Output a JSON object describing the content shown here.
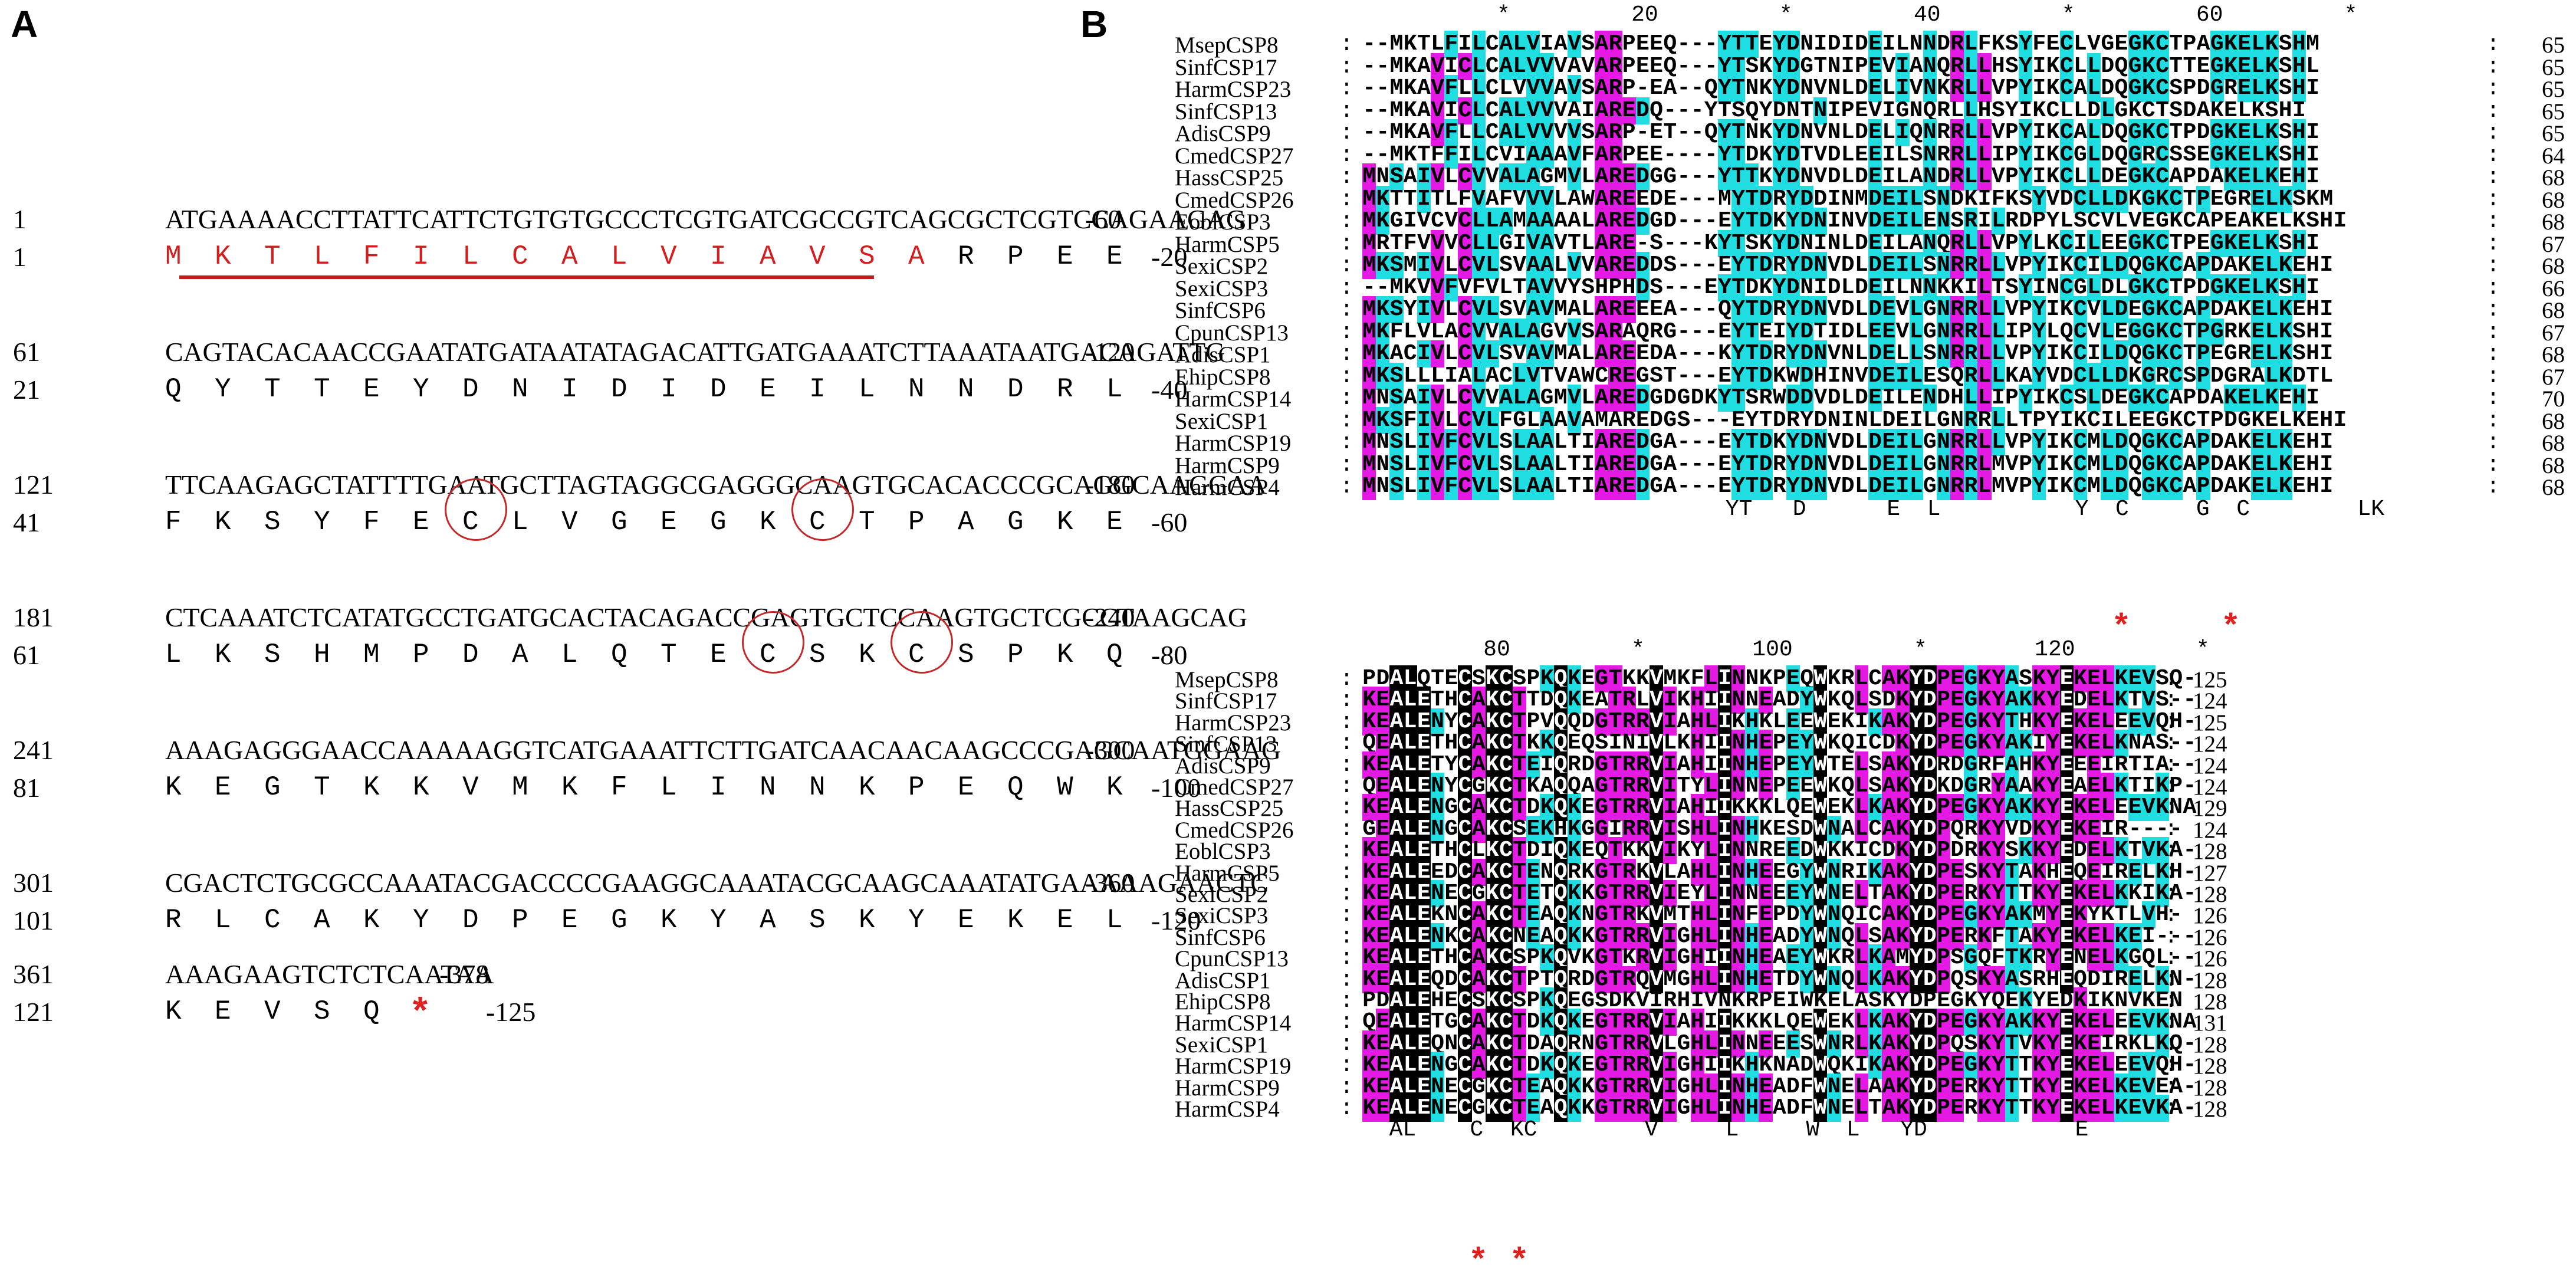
{
  "labels": {
    "a": "A",
    "b": "B"
  },
  "panel_a": {
    "rows": [
      {
        "num": "1",
        "dna": "ATGAAAACCTTATTCATTCTGTGTGCCCTCGTGATCGCCGTCAGCGCTCGTCCAGAAGAG",
        "end": "-60",
        "pnum": "1",
        "prot": [
          "M",
          "K",
          "T",
          "L",
          "F",
          "I",
          "L",
          "C",
          "A",
          "L",
          "V",
          "I",
          "A",
          "V",
          "S",
          "A",
          "R",
          "P",
          "E",
          "E"
        ],
        "pend": "-20"
      },
      {
        "num": "61",
        "dna": "CAGTACACAACCGAATATGATAATATAGACATTGATGAAATCTTAAATAATGACAGATTG",
        "end": "-120",
        "pnum": "21",
        "prot": [
          "Q",
          "Y",
          "T",
          "T",
          "E",
          "Y",
          "D",
          "N",
          "I",
          "D",
          "I",
          "D",
          "E",
          "I",
          "L",
          "N",
          "N",
          "D",
          "R",
          "L"
        ],
        "pend": "-40"
      },
      {
        "num": "121",
        "dna": "TTCAAGAGCTATTTTGAATGCTTAGTAGGCGAGGGCAAGTGCACACCCGCAGGCAAGGAA",
        "end": "-180",
        "pnum": "41",
        "prot": [
          "F",
          "K",
          "S",
          "Y",
          "F",
          "E",
          "C",
          "L",
          "V",
          "G",
          "E",
          "G",
          "K",
          "C",
          "T",
          "P",
          "A",
          "G",
          "K",
          "E"
        ],
        "pend": "-60"
      },
      {
        "num": "181",
        "dna": "CTCAAATCTCATATGCCTGATGCACTACAGACCGAGTGCTCCAAGTGCTCGCCTAAGCAG",
        "end": "-240",
        "pnum": "61",
        "prot": [
          "L",
          "K",
          "S",
          "H",
          "M",
          "P",
          "D",
          "A",
          "L",
          "Q",
          "T",
          "E",
          "C",
          "S",
          "K",
          "C",
          "S",
          "P",
          "K",
          "Q"
        ],
        "pend": "-80"
      },
      {
        "num": "241",
        "dna": "AAAGAGGGAACCAAAAAGGTCATGAAATTCTTGATCAACAACAAGCCCGAGCAATGGAAG",
        "end": "-300",
        "pnum": "81",
        "prot": [
          "K",
          "E",
          "G",
          "T",
          "K",
          "K",
          "V",
          "M",
          "K",
          "F",
          "L",
          "I",
          "N",
          "N",
          "K",
          "P",
          "E",
          "Q",
          "W",
          "K"
        ],
        "pend": "-100"
      },
      {
        "num": "301",
        "dna": "CGACTCTGCGCCAAATACGACCCCGAAGGCAAATACGCAAGCAAATATGAAAAAGAACTC",
        "end": "-360",
        "pnum": "101",
        "prot": [
          "R",
          "L",
          "C",
          "A",
          "K",
          "Y",
          "D",
          "P",
          "E",
          "G",
          "K",
          "Y",
          "A",
          "S",
          "K",
          "Y",
          "E",
          "K",
          "E",
          "L"
        ],
        "pend": "-120"
      },
      {
        "num": "361",
        "dna": "AAAGAAGTCTCTCAATAA",
        "end": "-378",
        "pnum": "121",
        "prot": [
          "K",
          "E",
          "V",
          "S",
          "Q",
          "*"
        ],
        "pend": "-125"
      }
    ]
  },
  "panel_b": {
    "block1": {
      "ruler": "          *         20         *         40         *         60         *",
      "rows": [
        {
          "name": "MsepCSP8",
          "seq": "--MKTLFILCALVIAVSARPEEQ---YTTEYDNIDIDEILNNDRLFKSYFECLVGEGKCTPAGKELKSHM",
          "end": "65"
        },
        {
          "name": "SinfCSP17",
          "seq": "--MKAVICLCALVVVAVARPEEQ---YTSKYDGTNIPEVIANQRLLHSYIKCLLDQGKCTTEGKELKSHL",
          "end": "65"
        },
        {
          "name": "HarmCSP23",
          "seq": "--MKAVFLLCLVVVAVSARP-EA--QYTNKYDNVNLDELIVNKRLLVPYIKCALDQGKCSPDGRELKSHI",
          "end": "65"
        },
        {
          "name": "SinfCSP13",
          "seq": "--MKAVICLCALVVVAIAREDQ---YTSQYDNTNIPEVIGNQRLLHSYIKCLLDLGKCTSDAKELKSHI",
          "end": "65"
        },
        {
          "name": "AdisCSP9",
          "seq": "--MKAVFLLCALVVVVSARP-ET--QYTNKYDNVNLDELIQNRRLLVPYIKCALDQGKCTPDGKELKSHI",
          "end": "65"
        },
        {
          "name": "CmedCSP27",
          "seq": "--MKTFFILCVIAAAVFARPEE----YTDKYDTVDLEEILSNRRLLIPYIKCGLDQGRCSSEGKELKSHI",
          "end": "64"
        },
        {
          "name": "HassCSP25",
          "seq": "MNSAIVLCVVALAGMVLAREDGG---YTTKYDNVDLDEILANDRLLVPYIKCLLDEGKCAPDAKELKEHI",
          "end": "68"
        },
        {
          "name": "CmedCSP26",
          "seq": "MKTTITLFVAFVVVLAWAREEDE---MYTDRYDDINMDEILSNDKIFKSYVDCLLDKGKCTPEGRELKSKM",
          "end": "68"
        },
        {
          "name": "EoblCSP3",
          "seq": "MKGIVCVCLLAMAAAALAREDGD---EYTDKYDNINVDEILENSRILRDPYLSCVLVEGKCAPEAKELKSHI",
          "end": "68"
        },
        {
          "name": "HarmCSP5",
          "seq": "MRTFVVVCLLGIVAVTLARE-S---KYTSKYDNINLDEILANQRLLVPYLKCILEEGKCTPEGKELKSHI",
          "end": "67"
        },
        {
          "name": "SexiCSP2",
          "seq": "MKSMIVLCVLSVAALVVAREDDS---EYTDRYDNVDLDEILSNRRLLVPYIKCILDQGKCAPDAKELKEHI",
          "end": "68"
        },
        {
          "name": "SexiCSP3",
          "seq": "--MKVVFVFVLTAVVYSHPHDS---EYTDKYDNIDLDEILNNKKILTSYINCGLDLGKCTPDGKELKSHI",
          "end": "66"
        },
        {
          "name": "SinfCSP6",
          "seq": "MKSYIVLCVLSVAVMALAREEEA---QYTDRYDNVDLDEVLGNRRLLVPYIKCVLDEGKCAPDAKELKEHI",
          "end": "68"
        },
        {
          "name": "CpunCSP13",
          "seq": "MKFLVLACVVALAGVVSARAQRG---EYTEIYDTIDLEEVLGNRRLLIPYLQCVLEGGKCTPGRKELKSHI",
          "end": "67"
        },
        {
          "name": "AdisCSP1",
          "seq": "MKACIVLCVLSVAVMALAREEDA---KYTDRYDNVNLDELLSNRRLLVPYIKCILDQGKCTPEGRELKSHI",
          "end": "68"
        },
        {
          "name": "EhipCSP8",
          "seq": "MKSLLLIALACLVTVAWCREGST---EYTDKWDHINVDEILESQRLLKAYVDCLLDKGRCSPDGRALKDTL",
          "end": "67"
        },
        {
          "name": "HarmCSP14",
          "seq": "MNSAIVLCVVALAGMVLAREDGDGDKYTSRWDDVDLDEILENDHLLIPYIKCSLDEGKCAPDAKELKEHI",
          "end": "70"
        },
        {
          "name": "SexiCSP1",
          "seq": "MKSFIVLCVLFGLAAVAMAREDGS---EYTDRYDNINLDEILGNRRLLTPYIKCILEEGKCTPDGKELKEHI",
          "end": "68"
        },
        {
          "name": "HarmCSP19",
          "seq": "MNSLIVFCVLSLAALTIAREDGA---EYTDKYDNVDLDEILGNRRLLVPYIKCMLDQGKCAPDAKELKEHI",
          "end": "68"
        },
        {
          "name": "HarmCSP9",
          "seq": "MNSLIVFCVLSLAALTIAREDGA---EYTDRYDNVDLDEILGNRRLMVPYIKCMLDQGKCAPDAKELKEHI",
          "end": "68"
        },
        {
          "name": "HarmCSP4",
          "seq": "MNSLIVFCVLSLAALTIAREDGA---EYTDRYDNVDLDEILGNRRLMVPYIKCMLDQGKCAPDAKELKEHI",
          "end": "68"
        }
      ],
      "consensus": "                           YT   D      E  L          Y  C     G  C        LK"
    },
    "block2": {
      "ruler": "         80         *        100         *        120         *",
      "rows": [
        {
          "name": "MsepCSP8",
          "seq": "PDALQTECSKCSPKQKEGTKKVMKFLINNKPEQWKRLCAKYDPEGKYASKYEKELKEVSQ-",
          "end": "125"
        },
        {
          "name": "SinfCSP17",
          "seq": "KEALETHCAKCTTDQKEATRLVIKHIINNEADYWKQLSDKYDPEGKYAKKYEDELKTVS--",
          "end": "124"
        },
        {
          "name": "HarmCSP23",
          "seq": "KEALENYCAKCTPVQQDGTRRVIAHLIKHKLEEWEKIKAKYDPEGKYTHKYEKELEEVQH-",
          "end": "125"
        },
        {
          "name": "SinfCSP13",
          "seq": "QEALETHCAKCTKKQEQSINIVLKHIINHEPEYWKQICDKYDPEGKYAKIYEKELKNAS--",
          "end": "124"
        },
        {
          "name": "AdisCSP9",
          "seq": "KEALETYCAKCTEIQRDGTRRVIAHIINHEPEYWTELSAKYDRDGRFAHKYEEEIRTIA--",
          "end": "124"
        },
        {
          "name": "CmedCSP27",
          "seq": "QEALENYCGKCTKAQQAGTRRVITYLINNEPEEWKQLSAKYDKDGRYAAKYEAELKTIKP-",
          "end": "124"
        },
        {
          "name": "HassCSP25",
          "seq": "KEALENGCAKCTDKQKEGTRRVIAHIIKKKLQEWEKLKAKYDPEGKYAKKYEKELEEVKNA",
          "end": "129"
        },
        {
          "name": "CmedCSP26",
          "seq": "GEALENGCAKCSEKHKGGIRRVISHLINHKESDWNALCAKYDPQRKYVDKYEKEIR----",
          "end": "124"
        },
        {
          "name": "EoblCSP3",
          "seq": "KEALETHCLKCTDIQKEQTKKVIKYLINNREEDWKKICDKYDPDRKYSKKYEDELKTVKA-",
          "end": "128"
        },
        {
          "name": "HarmCSP5",
          "seq": "KEALEEDCAKCTENQRKGTRKVLAHLINHEEGYWNRIKAKYDPESKYTAKHEQEIRELKH-",
          "end": "127"
        },
        {
          "name": "SexiCSP2",
          "seq": "KEALENECGKCTETQKKGTRRVIEYLINNEEEYWNELTAKYDPERKYTTKYEKELKKIKA-",
          "end": "128"
        },
        {
          "name": "SexiCSP3",
          "seq": "KEALEKNCAKCTEAQKNGTRKVMTHLINFEPDYWNQICAKYDPEGKYAKMYEKYKTLVH-",
          "end": "126"
        },
        {
          "name": "SinfCSP6",
          "seq": "KEALENKCAKCNEAQKKGTRRVIGHLINHEADYWNQLSAKYDPERKFTAKYEKELKEI---",
          "end": "126"
        },
        {
          "name": "CpunCSP13",
          "seq": "KEALETHCAKCSPKQVKGTKRVIGHIINHEAEYWKRLKAMYDPSGQFTKRYENELKGQL--",
          "end": "126"
        },
        {
          "name": "AdisCSP1",
          "seq": "KEALEQDCAKCTPTQRDGTRQVMGHLINHETDYWNQLKAKYDPQSKYASRHEQDIRELKN-",
          "end": "128"
        },
        {
          "name": "EhipCSP8",
          "seq": "PDALEHECSKCSPKQEGSDKVIRHIVNKRPEIWKELASKYDPEGKYQEKYEDKIKNVKEN",
          "end": "128"
        },
        {
          "name": "HarmCSP14",
          "seq": "QEALETGCAKCTDKQKEGTRRVIAHIIKKKLQEWEKLKAKYDPEGKYAKKYEKELEEVKNA",
          "end": "131"
        },
        {
          "name": "SexiCSP1",
          "seq": "KEALEQNCAKCTDAQRNGTRRVLGHLINNEEESWNRLKAKYDPQSKYTVKYEKEIRKLKQ-",
          "end": "128"
        },
        {
          "name": "HarmCSP19",
          "seq": "KEALENGCAKCTDKQKEGTRRVIGHIIKHKNADWQKIKAKYDPEGKYTTKYEKELEEVQH-",
          "end": "128"
        },
        {
          "name": "HarmCSP9",
          "seq": "KEALENECGKCTEAQKKGTRRVIGHLINHEADFWNELAAKYDPERKYTTKYEKELKEVEA-",
          "end": "128"
        },
        {
          "name": "HarmCSP4",
          "seq": "KEALENECGKCTEAQKKGTRRVIGHLINHEADFWNELTAKYDPERKYTTKYEKELKEVKA-",
          "end": "128"
        }
      ],
      "consensus": "  AL    C  KC        V     L     W  L   YD           E"
    },
    "colors": {
      "black": "#000000",
      "magenta": "#e419e4",
      "cyan": "#1fdde0",
      "red": "#e0201e"
    }
  }
}
